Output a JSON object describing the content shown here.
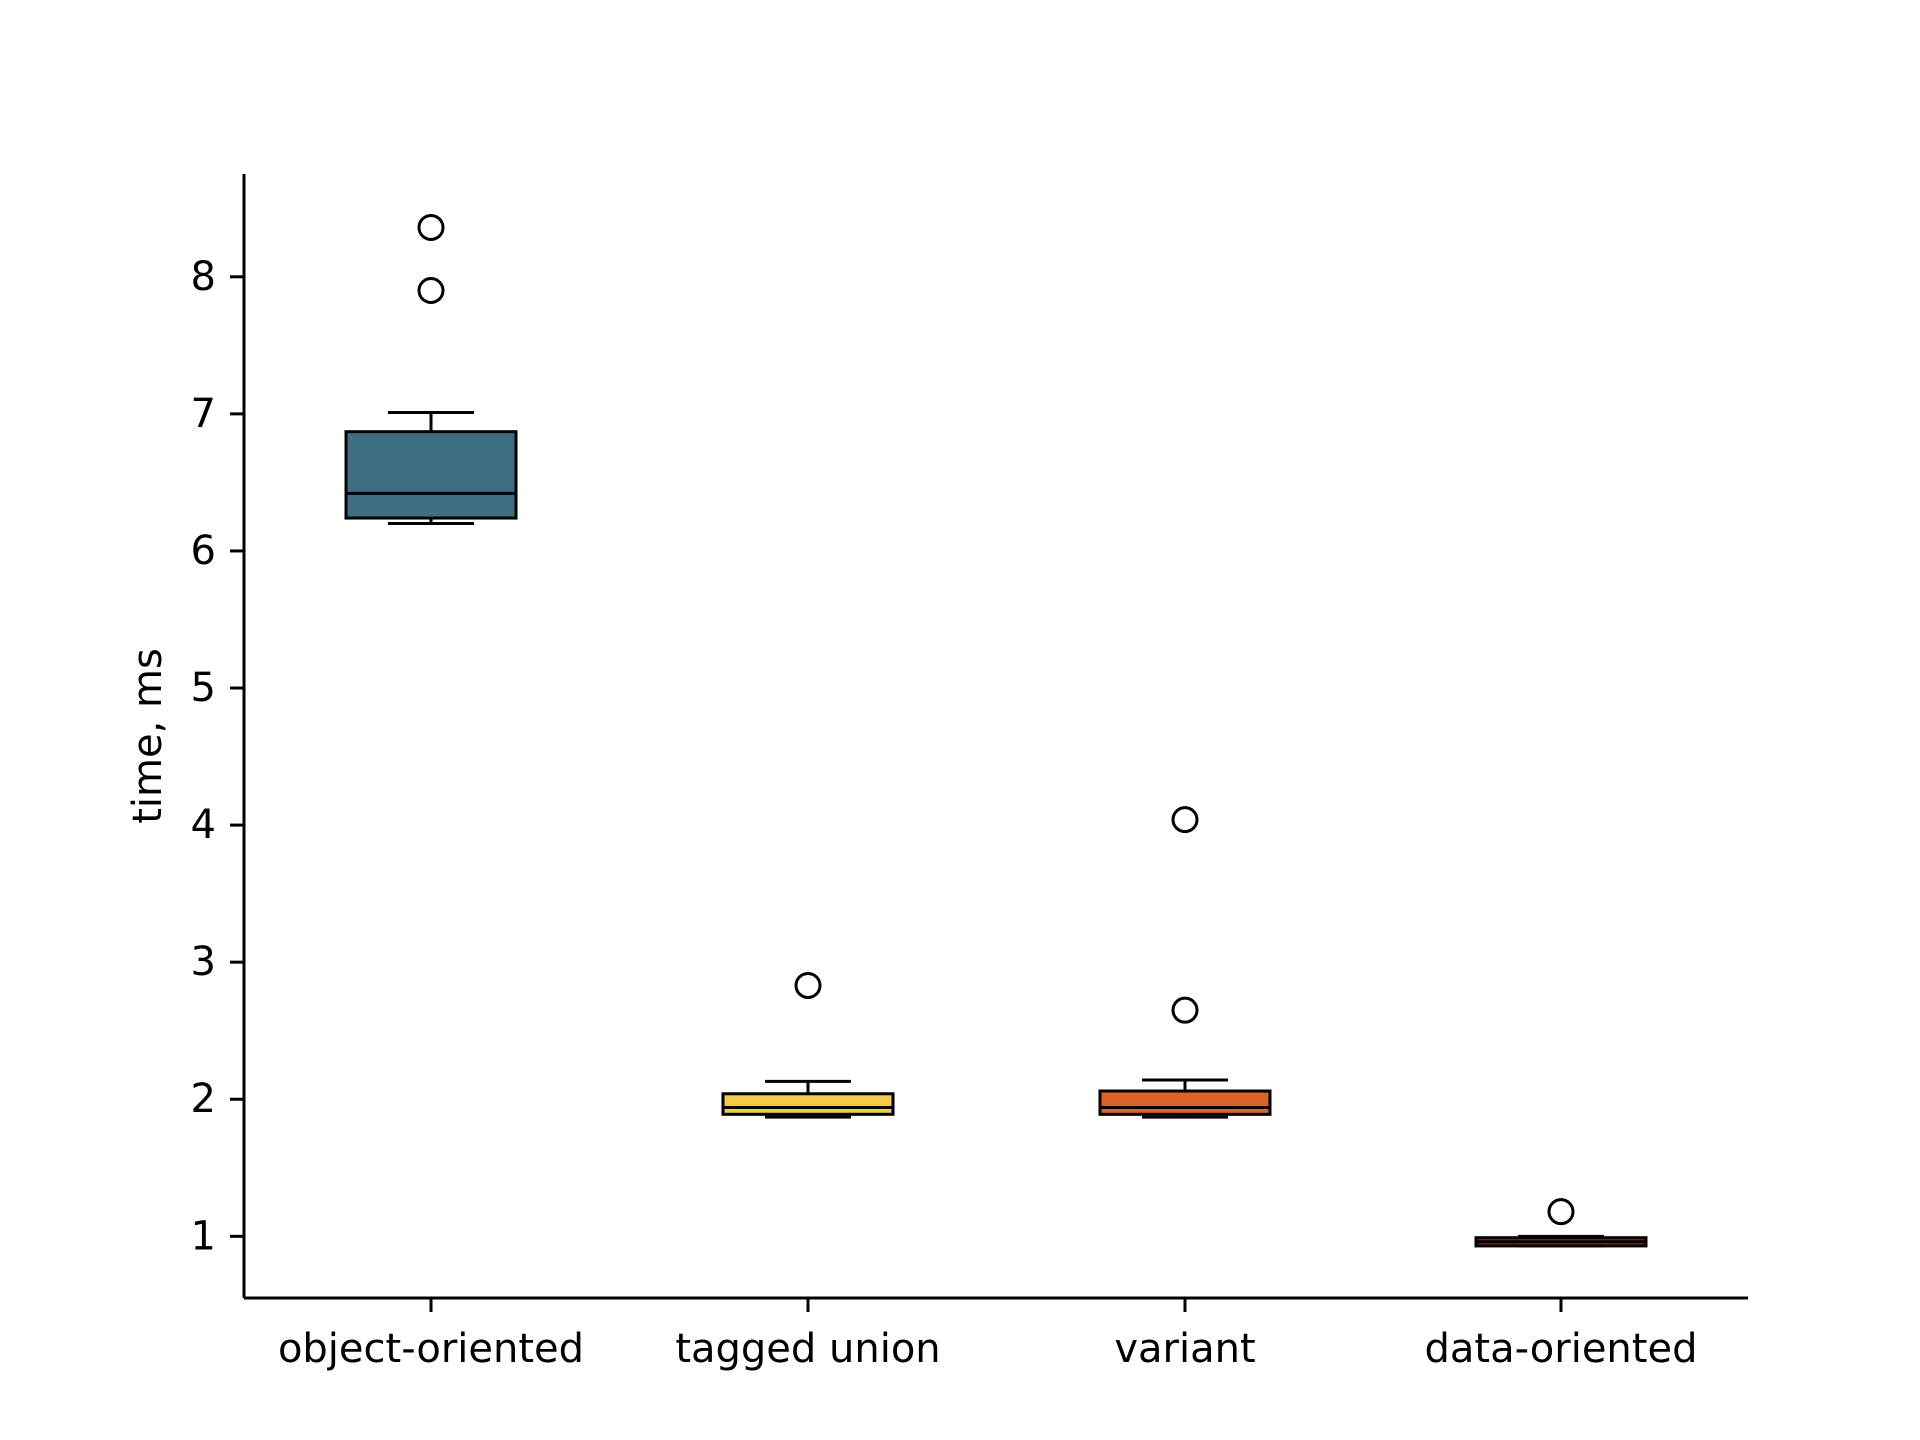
{
  "chart_data": {
    "type": "box",
    "title": "",
    "xlabel": "",
    "ylabel": "time, ms",
    "ylim": [
      0.55,
      8.75
    ],
    "yticks": [
      1,
      2,
      3,
      4,
      5,
      6,
      7,
      8
    ],
    "grid": false,
    "categories": [
      "object-oriented",
      "tagged union",
      "variant",
      "data-oriented"
    ],
    "series": [
      {
        "category": "object-oriented",
        "color": "#3d6e82",
        "whisker_low": 6.2,
        "q1": 6.24,
        "median": 6.42,
        "q3": 6.87,
        "whisker_high": 7.01,
        "outliers": [
          7.9,
          8.36
        ]
      },
      {
        "category": "tagged union",
        "color": "#f2c94c",
        "whisker_low": 1.87,
        "q1": 1.89,
        "median": 1.94,
        "q3": 2.04,
        "whisker_high": 2.13,
        "outliers": [
          2.83
        ]
      },
      {
        "category": "variant",
        "color": "#d9652b",
        "whisker_low": 1.87,
        "q1": 1.89,
        "median": 1.94,
        "q3": 2.06,
        "whisker_high": 2.14,
        "outliers": [
          2.65,
          4.04
        ]
      },
      {
        "category": "data-oriented",
        "color": "#8b2a1a",
        "whisker_low": 0.93,
        "q1": 0.93,
        "median": 0.96,
        "q3": 0.99,
        "whisker_high": 1.0,
        "outliers": [
          1.18
        ]
      }
    ]
  }
}
